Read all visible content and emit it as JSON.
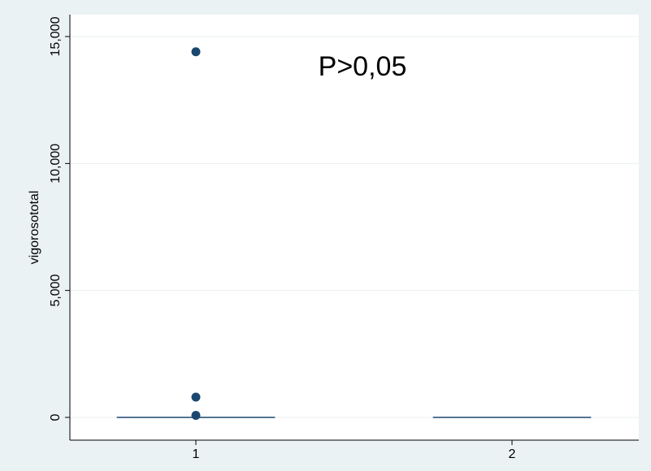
{
  "chart_data": {
    "type": "box",
    "title": "",
    "xlabel": "",
    "ylabel": "vigorosototal",
    "annotation": "P>0,05",
    "categories": [
      "1",
      "2"
    ],
    "ylim": [
      0,
      15500
    ],
    "yticks": [
      0,
      5000,
      10000,
      15000
    ],
    "ytick_labels": [
      "0",
      "5,000",
      "10,000",
      "15,000"
    ],
    "grid": true,
    "boxes": [
      {
        "category": "1",
        "q1": 0,
        "median": 0,
        "q3": 0,
        "whisker_low": 0,
        "whisker_high": 0
      },
      {
        "category": "2",
        "q1": 0,
        "median": 0,
        "q3": 0,
        "whisker_low": 0,
        "whisker_high": 0
      }
    ],
    "outliers": [
      {
        "category": "1",
        "value": 14400
      },
      {
        "category": "1",
        "value": 800
      },
      {
        "category": "1",
        "value": 80
      }
    ],
    "colors": {
      "outer_background": "#eaf2f3",
      "plot_background": "#ffffff",
      "grid": "#e8eff0",
      "marker": "#1a476f",
      "axis": "#000000"
    }
  }
}
